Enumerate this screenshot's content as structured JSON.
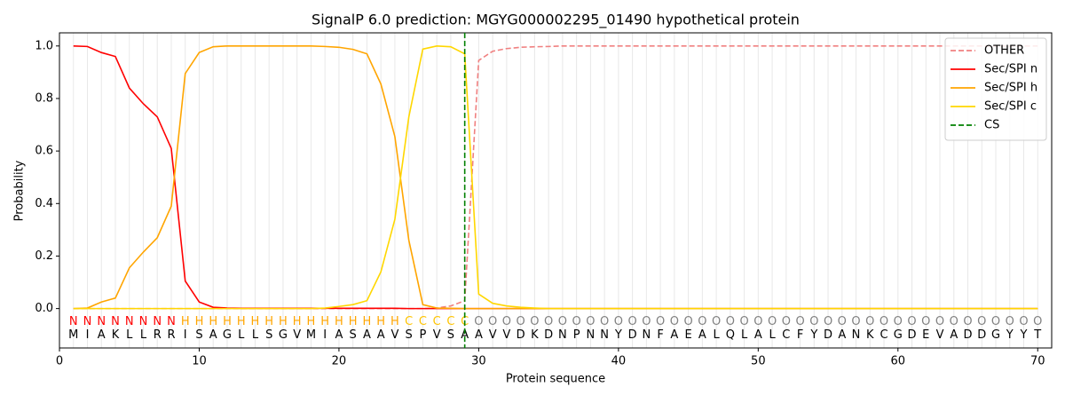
{
  "chart_data": {
    "type": "line",
    "title": "SignalP 6.0 prediction: MGYG000002295_01490 hypothetical protein",
    "xlabel": "Protein sequence",
    "ylabel": "Probability",
    "x": [
      1,
      2,
      3,
      4,
      5,
      6,
      7,
      8,
      9,
      10,
      11,
      12,
      13,
      14,
      15,
      16,
      17,
      18,
      19,
      20,
      21,
      22,
      23,
      24,
      25,
      26,
      27,
      28,
      29,
      30,
      31,
      32,
      33,
      34,
      35,
      36,
      37,
      38,
      39,
      40,
      41,
      42,
      43,
      44,
      45,
      46,
      47,
      48,
      49,
      50,
      51,
      52,
      53,
      54,
      55,
      56,
      57,
      58,
      59,
      60,
      61,
      62,
      63,
      64,
      65,
      66,
      67,
      68,
      69,
      70
    ],
    "regions": [
      "N",
      "N",
      "N",
      "N",
      "N",
      "N",
      "N",
      "N",
      "H",
      "H",
      "H",
      "H",
      "H",
      "H",
      "H",
      "H",
      "H",
      "H",
      "H",
      "H",
      "H",
      "H",
      "H",
      "H",
      "C",
      "C",
      "C",
      "C",
      "C",
      "O",
      "O",
      "O",
      "O",
      "O",
      "O",
      "O",
      "O",
      "O",
      "O",
      "O",
      "O",
      "O",
      "O",
      "O",
      "O",
      "O",
      "O",
      "O",
      "O",
      "O",
      "O",
      "O",
      "O",
      "O",
      "O",
      "O",
      "O",
      "O",
      "O",
      "O",
      "O",
      "O",
      "O",
      "O",
      "O",
      "O",
      "O",
      "O",
      "O",
      "O"
    ],
    "region_colors": {
      "N": "#ff0000",
      "H": "#ffa500",
      "C": "#ffc400",
      "O": "#808080"
    },
    "sequence": [
      "M",
      "I",
      "A",
      "K",
      "L",
      "L",
      "R",
      "R",
      "I",
      "S",
      "A",
      "G",
      "L",
      "L",
      "S",
      "G",
      "V",
      "M",
      "I",
      "A",
      "S",
      "A",
      "A",
      "V",
      "S",
      "P",
      "V",
      "S",
      "A",
      "A",
      "V",
      "V",
      "D",
      "K",
      "D",
      "N",
      "P",
      "N",
      "N",
      "Y",
      "D",
      "N",
      "F",
      "A",
      "E",
      "A",
      "L",
      "Q",
      "L",
      "A",
      "L",
      "C",
      "F",
      "Y",
      "D",
      "A",
      "N",
      "K",
      "C",
      "G",
      "D",
      "E",
      "V",
      "A",
      "D",
      "D",
      "G",
      "Y",
      "Y",
      "T"
    ],
    "series": [
      {
        "name": "OTHER",
        "color": "#f08080",
        "dashed": true,
        "values": [
          0,
          0,
          0,
          0,
          0,
          0,
          0,
          0,
          0,
          0,
          0,
          0,
          0,
          0,
          0,
          0,
          0,
          0,
          0,
          0,
          0,
          0,
          0,
          0,
          0,
          0,
          0.002,
          0.01,
          0.03,
          0.945,
          0.98,
          0.99,
          0.995,
          0.997,
          0.998,
          1,
          1,
          1,
          1,
          1,
          1,
          1,
          1,
          1,
          1,
          1,
          1,
          1,
          1,
          1,
          1,
          1,
          1,
          1,
          1,
          1,
          1,
          1,
          1,
          1,
          1,
          1,
          1,
          1,
          1,
          1,
          1,
          1,
          1,
          1
        ]
      },
      {
        "name": "Sec/SPI n",
        "color": "#ff0000",
        "values": [
          1.0,
          0.998,
          0.975,
          0.96,
          0.84,
          0.78,
          0.73,
          0.61,
          0.105,
          0.025,
          0.005,
          0.002,
          0.001,
          0.001,
          0.001,
          0.001,
          0.001,
          0.001,
          0.001,
          0.001,
          0.001,
          0.001,
          0.001,
          0.001,
          0,
          0,
          0,
          0,
          0,
          0,
          0,
          0,
          0,
          0,
          0,
          0,
          0,
          0,
          0,
          0,
          0,
          0,
          0,
          0,
          0,
          0,
          0,
          0,
          0,
          0,
          0,
          0,
          0,
          0,
          0,
          0,
          0,
          0,
          0,
          0,
          0,
          0,
          0,
          0,
          0,
          0,
          0,
          0,
          0,
          0
        ]
      },
      {
        "name": "Sec/SPI h",
        "color": "#ffa500",
        "values": [
          0,
          0.002,
          0.025,
          0.04,
          0.155,
          0.215,
          0.27,
          0.39,
          0.895,
          0.975,
          0.997,
          1.0,
          1.0,
          1.0,
          1.0,
          1.0,
          1.0,
          1.0,
          0.998,
          0.995,
          0.987,
          0.97,
          0.855,
          0.655,
          0.26,
          0.015,
          0.002,
          0.001,
          0,
          0,
          0,
          0,
          0,
          0,
          0,
          0,
          0,
          0,
          0,
          0,
          0,
          0,
          0,
          0,
          0,
          0,
          0,
          0,
          0,
          0,
          0,
          0,
          0,
          0,
          0,
          0,
          0,
          0,
          0,
          0,
          0,
          0,
          0,
          0,
          0,
          0,
          0,
          0,
          0,
          0
        ]
      },
      {
        "name": "Sec/SPI c",
        "color": "#ffd700",
        "values": [
          0,
          0,
          0,
          0,
          0,
          0,
          0,
          0,
          0,
          0,
          0,
          0,
          0,
          0,
          0,
          0,
          0,
          0,
          0.002,
          0.008,
          0.015,
          0.03,
          0.14,
          0.34,
          0.73,
          0.988,
          1.0,
          0.997,
          0.97,
          0.055,
          0.02,
          0.01,
          0.005,
          0.002,
          0,
          0,
          0,
          0,
          0,
          0,
          0,
          0,
          0,
          0,
          0,
          0,
          0,
          0,
          0,
          0,
          0,
          0,
          0,
          0,
          0,
          0,
          0,
          0,
          0,
          0,
          0,
          0,
          0,
          0,
          0,
          0,
          0,
          0,
          0,
          0
        ]
      }
    ],
    "vlines": [
      {
        "name": "CS",
        "x": 29,
        "color": "#008000"
      }
    ],
    "xlim": [
      0,
      71
    ],
    "ylim": [
      -0.15,
      1.05
    ],
    "xticks": [
      0,
      10,
      20,
      30,
      40,
      50,
      60,
      70
    ],
    "yticks": [
      {
        "value": 0,
        "label": "0.0"
      },
      {
        "value": 0.2,
        "label": "0.2"
      },
      {
        "value": 0.4,
        "label": "0.4"
      },
      {
        "value": 0.6,
        "label": "0.6"
      },
      {
        "value": 0.8,
        "label": "0.8"
      },
      {
        "value": 1.0,
        "label": "1.0"
      }
    ],
    "legend": "upper right"
  }
}
